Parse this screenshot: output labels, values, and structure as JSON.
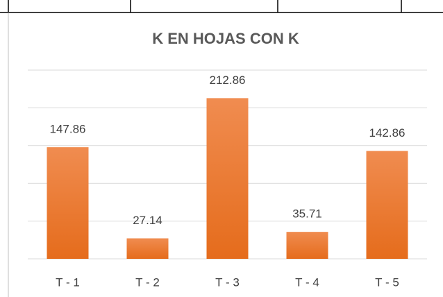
{
  "chart_data": {
    "type": "bar",
    "title": "K EN HOJAS CON K",
    "categories": [
      "T - 1",
      "T - 2",
      "T - 3",
      "T - 4",
      "T - 5"
    ],
    "values": [
      147.86,
      27.14,
      212.86,
      35.71,
      142.86
    ],
    "color": "#ed7d31",
    "ylim": [
      0,
      250
    ],
    "yticks": [
      0,
      50,
      100,
      150,
      200,
      250
    ],
    "grid": true
  }
}
